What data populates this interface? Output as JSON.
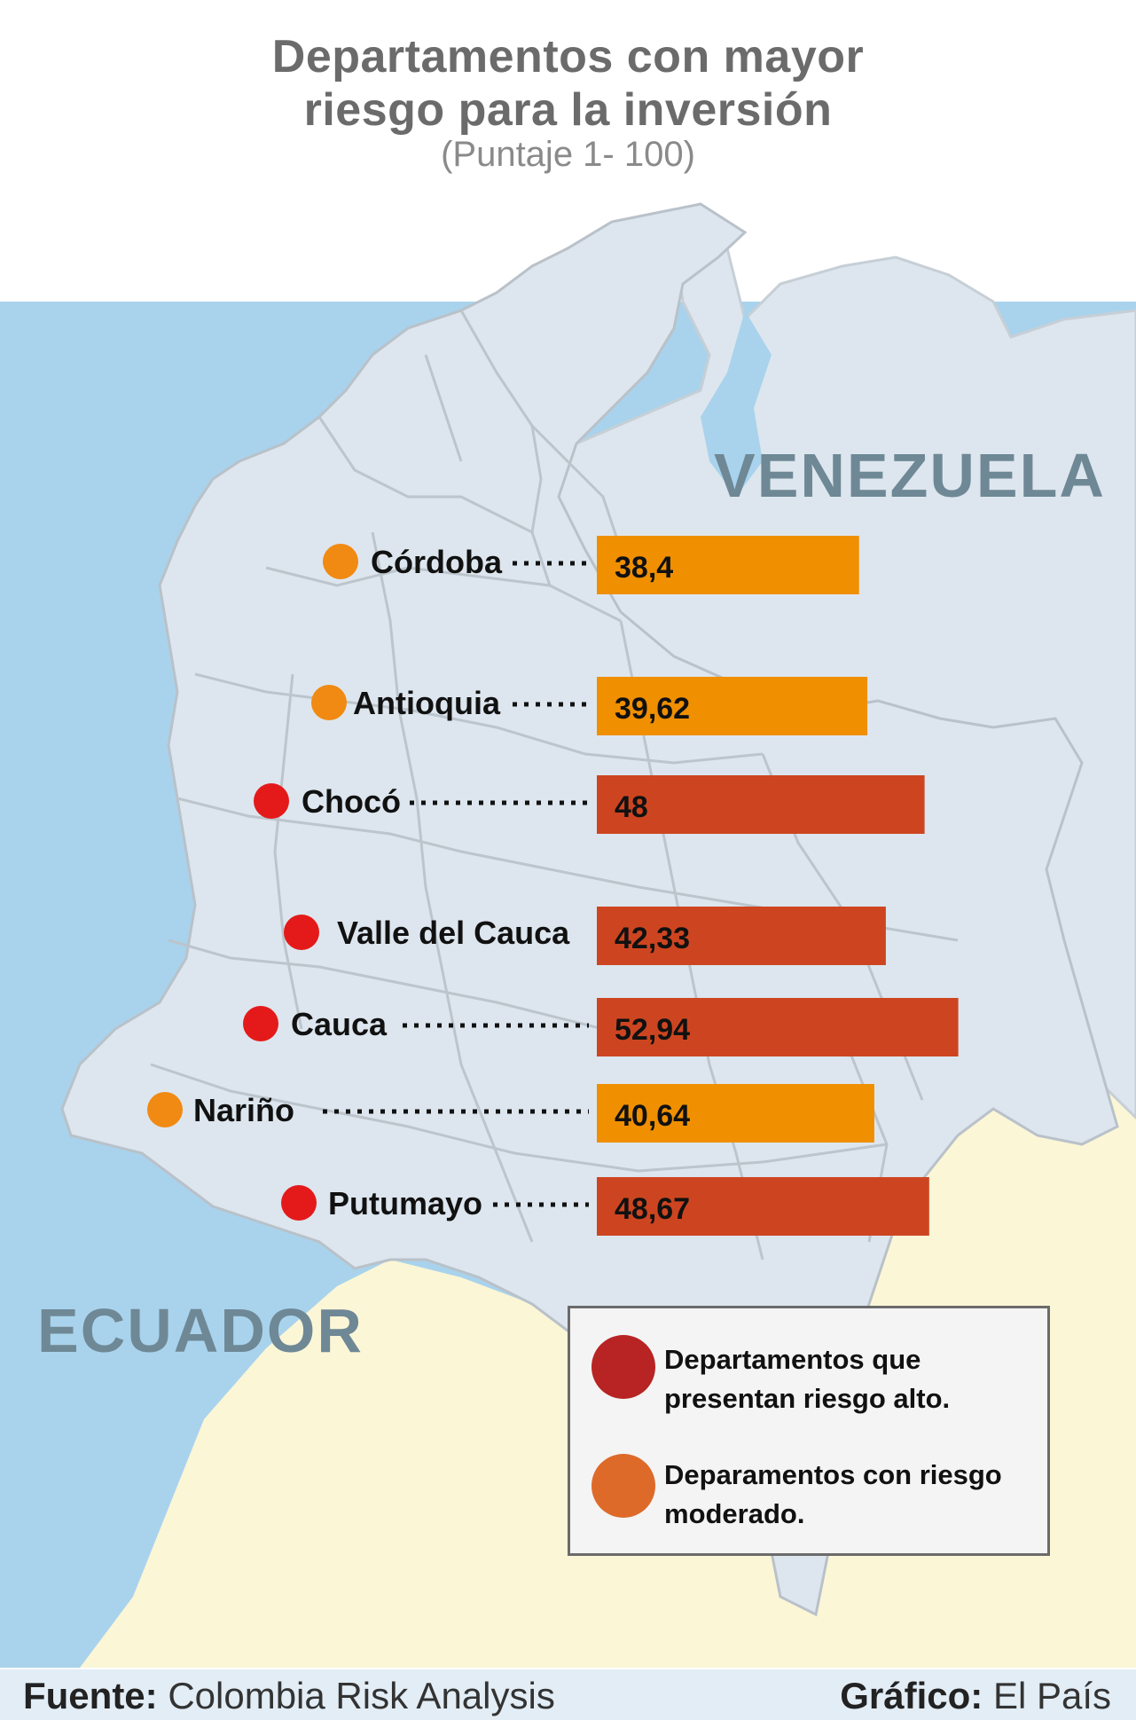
{
  "map_labels": {
    "venezuela": "VENEZUELA",
    "ecuador": "ECUADOR"
  },
  "footer": {
    "source_label": "Fuente:",
    "source": "Colombia Risk Analysis",
    "graphic_label": "Gráfico:",
    "graphic": "El País"
  },
  "colors": {
    "high": "#cd4520",
    "moderate": "#f08f00",
    "high_marker": "#e41a1a",
    "moderate_marker": "#f18a12"
  },
  "chart_data": {
    "type": "bar",
    "title_line1": "Departamentos con mayor",
    "title_line2": "riesgo para la inversión",
    "subtitle": "(Puntaje 1- 100)",
    "categories": [
      "Córdoba",
      "Antioquia",
      "Chocó",
      "Valle del Cauca",
      "Cauca",
      "Nariño",
      "Putumayo"
    ],
    "values": [
      38.4,
      39.62,
      48,
      42.33,
      52.94,
      40.64,
      48.67
    ],
    "value_labels": [
      "38,4",
      "39,62",
      "48",
      "42,33",
      "52,94",
      "40,64",
      "48,67"
    ],
    "risk": [
      "moderate",
      "moderate",
      "high",
      "high",
      "high",
      "moderate",
      "high"
    ],
    "legend": {
      "high": "Departamentos que presentan riesgo alto.",
      "moderate": "Deparamentos con riesgo moderado."
    }
  }
}
